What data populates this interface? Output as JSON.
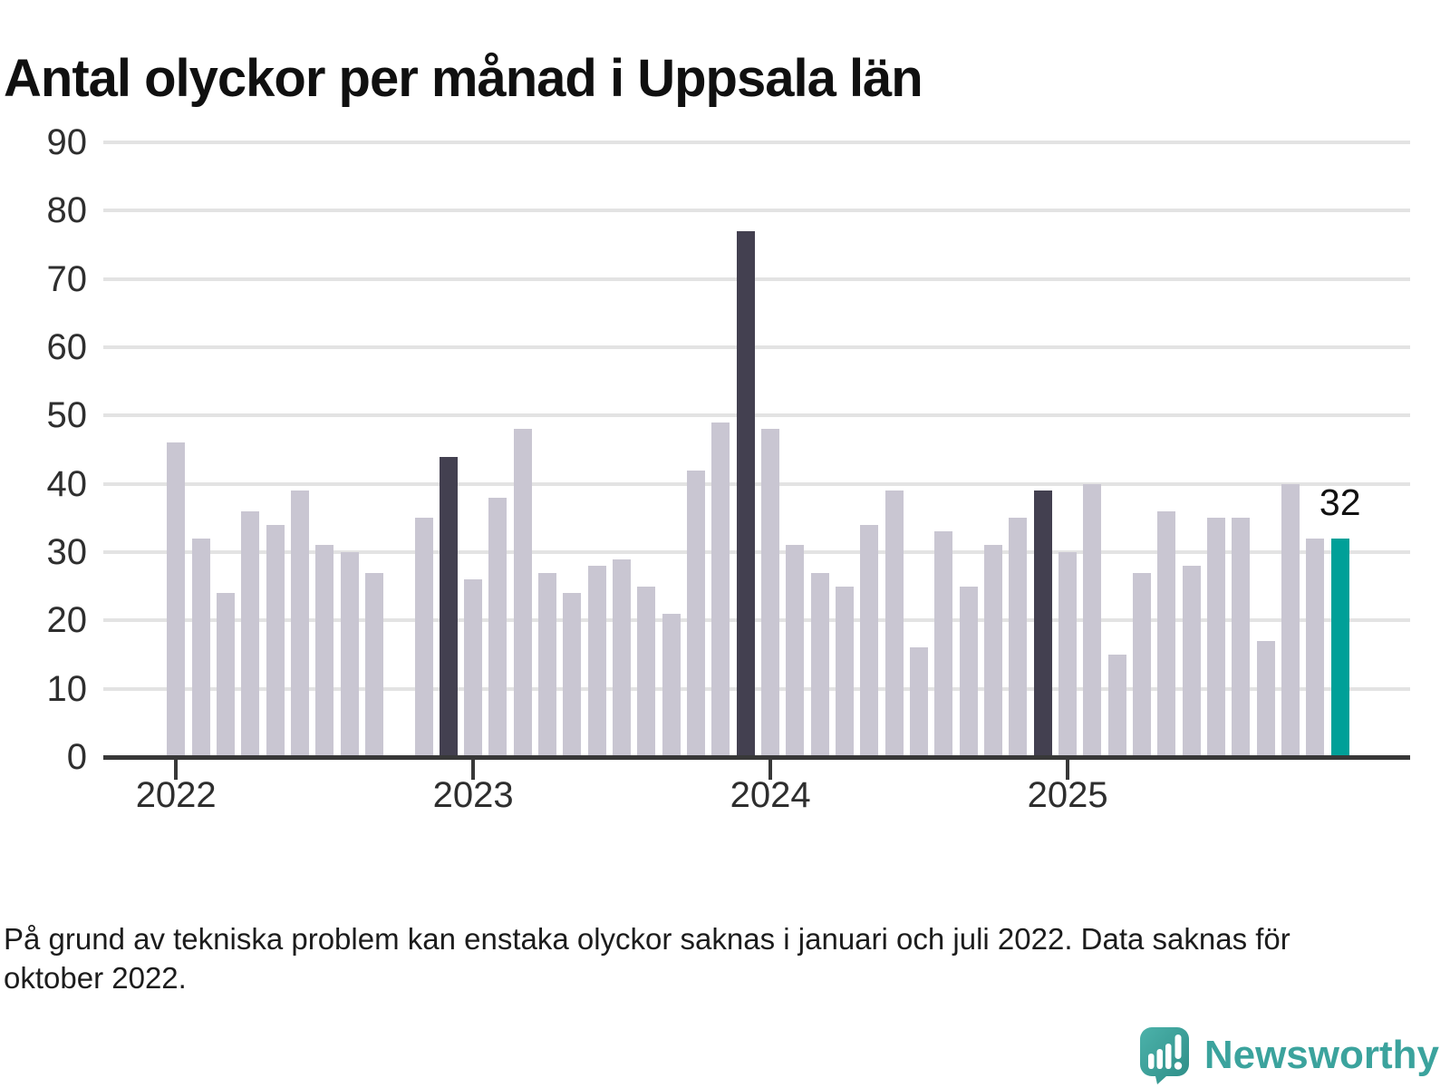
{
  "title": "Antal olyckor per månad i Uppsala län",
  "footnote": "På grund av tekniska problem kan enstaka olyckor saknas i januari och juli 2022. Data saknas för oktober 2022.",
  "brand": {
    "name": "Newsworthy",
    "logo_icon": "speech-bubble-bar-chart-exclamation"
  },
  "colors": {
    "bar_default": "#c9c6d2",
    "bar_reference_dark": "#434050",
    "bar_current_teal": "#00a098",
    "gridline": "#e3e3e3",
    "axis": "#383838",
    "tick_label": "#2e2e2e",
    "brand_teal": "#3ba39d"
  },
  "chart_data": {
    "type": "bar",
    "title": "Antal olyckor per månad i Uppsala län",
    "xlabel": "",
    "ylabel": "",
    "ylim": [
      0,
      90
    ],
    "yticks": [
      0,
      10,
      20,
      30,
      40,
      50,
      60,
      70,
      80,
      90
    ],
    "grid": "horizontal",
    "legend": "none",
    "months": [
      "2022-01",
      "2022-02",
      "2022-03",
      "2022-04",
      "2022-05",
      "2022-06",
      "2022-07",
      "2022-08",
      "2022-09",
      "2022-10",
      "2022-11",
      "2022-12",
      "2023-01",
      "2023-02",
      "2023-03",
      "2023-04",
      "2023-05",
      "2023-06",
      "2023-07",
      "2023-08",
      "2023-09",
      "2023-10",
      "2023-11",
      "2023-12",
      "2024-01",
      "2024-02",
      "2024-03",
      "2024-04",
      "2024-05",
      "2024-06",
      "2024-07",
      "2024-08",
      "2024-09",
      "2024-10",
      "2024-11",
      "2024-12",
      "2025-01",
      "2025-02",
      "2025-03",
      "2025-04",
      "2025-05",
      "2025-06",
      "2025-07",
      "2025-08",
      "2025-09",
      "2025-10",
      "2025-11",
      "2025-12"
    ],
    "values": [
      46,
      32,
      24,
      36,
      34,
      39,
      31,
      30,
      27,
      null,
      35,
      44,
      26,
      38,
      48,
      27,
      24,
      28,
      29,
      25,
      21,
      42,
      49,
      77,
      48,
      31,
      27,
      25,
      34,
      39,
      16,
      33,
      25,
      31,
      35,
      39,
      30,
      40,
      15,
      27,
      36,
      28,
      35,
      35,
      17,
      40,
      32,
      32
    ],
    "missing_months": [
      "2022-10"
    ],
    "highlight_dark_months": [
      "2022-12",
      "2023-12",
      "2024-12"
    ],
    "highlight_current_month": "2025-12",
    "year_ticks": [
      {
        "label": "2022",
        "month_index": 0
      },
      {
        "label": "2023",
        "month_index": 12
      },
      {
        "label": "2024",
        "month_index": 24
      },
      {
        "label": "2025",
        "month_index": 36
      }
    ],
    "annotation": {
      "month": "2025-12",
      "text": "32"
    }
  }
}
